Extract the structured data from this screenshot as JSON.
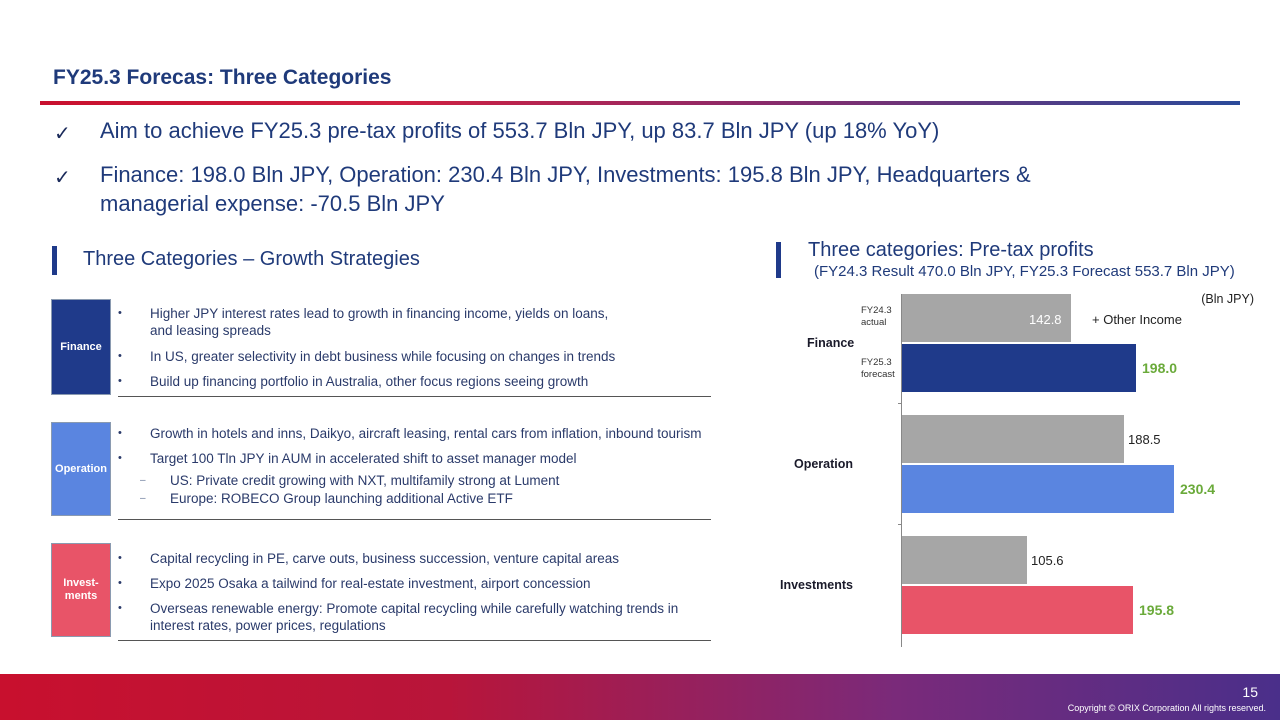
{
  "header": {
    "title": "FY25.3 Forecas: Three Categories"
  },
  "summary": {
    "check_icon": "✓",
    "lines": [
      "Aim to achieve FY25.3 pre-tax profits of 553.7 Bln JPY, up 83.7 Bln JPY (up 18% YoY)",
      "Finance: 198.0 Bln JPY, Operation: 230.4 Bln JPY, Investments: 195.8 Bln JPY, Headquarters &",
      "managerial expense: -70.5 Bln JPY"
    ]
  },
  "strategies": {
    "heading": "Three Categories – Growth Strategies",
    "bullet_icon": "•",
    "dash_icon": "–",
    "categories": [
      {
        "label": "Finance",
        "color": "#1f3a8a",
        "items": [
          "Higher JPY interest rates lead to growth in financing income, yields on loans,",
          "and leasing spreads",
          "In US, greater selectivity in debt business while focusing on changes in trends",
          "Build up financing portfolio in Australia, other focus regions seeing growth"
        ]
      },
      {
        "label": "Operation",
        "color": "#5a85e0",
        "items": [
          "Growth in hotels and inns, Daikyo, aircraft leasing, rental cars from inflation, inbound tourism",
          "Target 100 Tln JPY in AUM in accelerated shift to asset manager model",
          "US: Private credit growing with NXT, multifamily strong at Lument",
          "Europe: ROBECO Group launching additional Active ETF"
        ]
      },
      {
        "label": "Invest-\nments",
        "color": "#e85468",
        "items": [
          "Capital recycling in PE, carve outs, business succession, venture capital areas",
          "Expo 2025 Osaka a tailwind for real-estate investment, airport concession",
          "Overseas renewable energy: Promote capital recycling while carefully watching trends in",
          "interest rates, power prices, regulations"
        ]
      }
    ]
  },
  "profits": {
    "heading": "Three categories: Pre-tax profits",
    "subheading": "(FY24.3 Result 470.0 Bln JPY, FY25.3 Forecast 553.7 Bln JPY)"
  },
  "chart_data": {
    "type": "bar",
    "orientation": "horizontal",
    "unit": "(Bln JPY)",
    "categories": [
      "Finance",
      "Operation",
      "Investments"
    ],
    "series": [
      {
        "name": "FY24.3\nactual",
        "values": [
          142.8,
          188.5,
          105.6
        ],
        "color": "#a6a6a6"
      },
      {
        "name": "FY25.3\nforecast",
        "values": [
          198.0,
          230.4,
          195.8
        ],
        "colors": [
          "#1f3a8a",
          "#5a85e0",
          "#e85468"
        ]
      }
    ],
    "value_labels": {
      "actual": [
        "142.8",
        "188.5",
        "105.6"
      ],
      "forecast": [
        "198.0",
        "230.4",
        "195.8"
      ]
    },
    "annotation": "+ Other Income",
    "xlim": [
      0,
      250
    ]
  },
  "footer": {
    "page_number": "15",
    "copyright": "Copyright © ORIX Corporation All rights reserved."
  }
}
